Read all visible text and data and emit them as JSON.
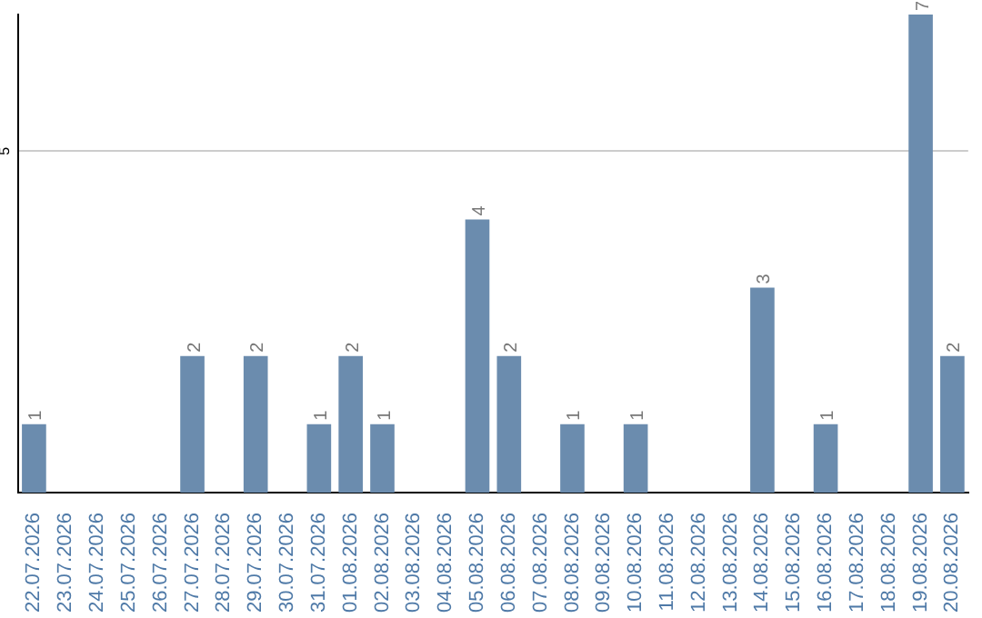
{
  "chart_data": {
    "type": "bar",
    "categories": [
      "22.07.2026",
      "23.07.2026",
      "24.07.2026",
      "25.07.2026",
      "26.07.2026",
      "27.07.2026",
      "28.07.2026",
      "29.07.2026",
      "30.07.2026",
      "31.07.2026",
      "01.08.2026",
      "02.08.2026",
      "03.08.2026",
      "04.08.2026",
      "05.08.2026",
      "06.08.2026",
      "07.08.2026",
      "08.08.2026",
      "09.08.2026",
      "10.08.2026",
      "11.08.2026",
      "12.08.2026",
      "13.08.2026",
      "14.08.2026",
      "15.08.2026",
      "16.08.2026",
      "17.08.2026",
      "18.08.2026",
      "19.08.2026",
      "20.08.2026"
    ],
    "values": [
      1,
      0,
      0,
      0,
      0,
      2,
      0,
      2,
      0,
      1,
      2,
      1,
      0,
      0,
      4,
      2,
      0,
      1,
      0,
      1,
      0,
      0,
      0,
      3,
      0,
      1,
      0,
      0,
      7,
      2
    ],
    "value_labels": [
      "1",
      null,
      null,
      null,
      null,
      "2",
      null,
      "2",
      null,
      "1",
      "2",
      "1",
      null,
      null,
      "4",
      "2",
      null,
      "1",
      null,
      "1",
      null,
      null,
      null,
      "3",
      null,
      "1",
      null,
      null,
      "7",
      "2"
    ],
    "color": "#6b8cae",
    "ylim": [
      0,
      7
    ],
    "yticks": [
      5
    ],
    "grid": "y"
  }
}
